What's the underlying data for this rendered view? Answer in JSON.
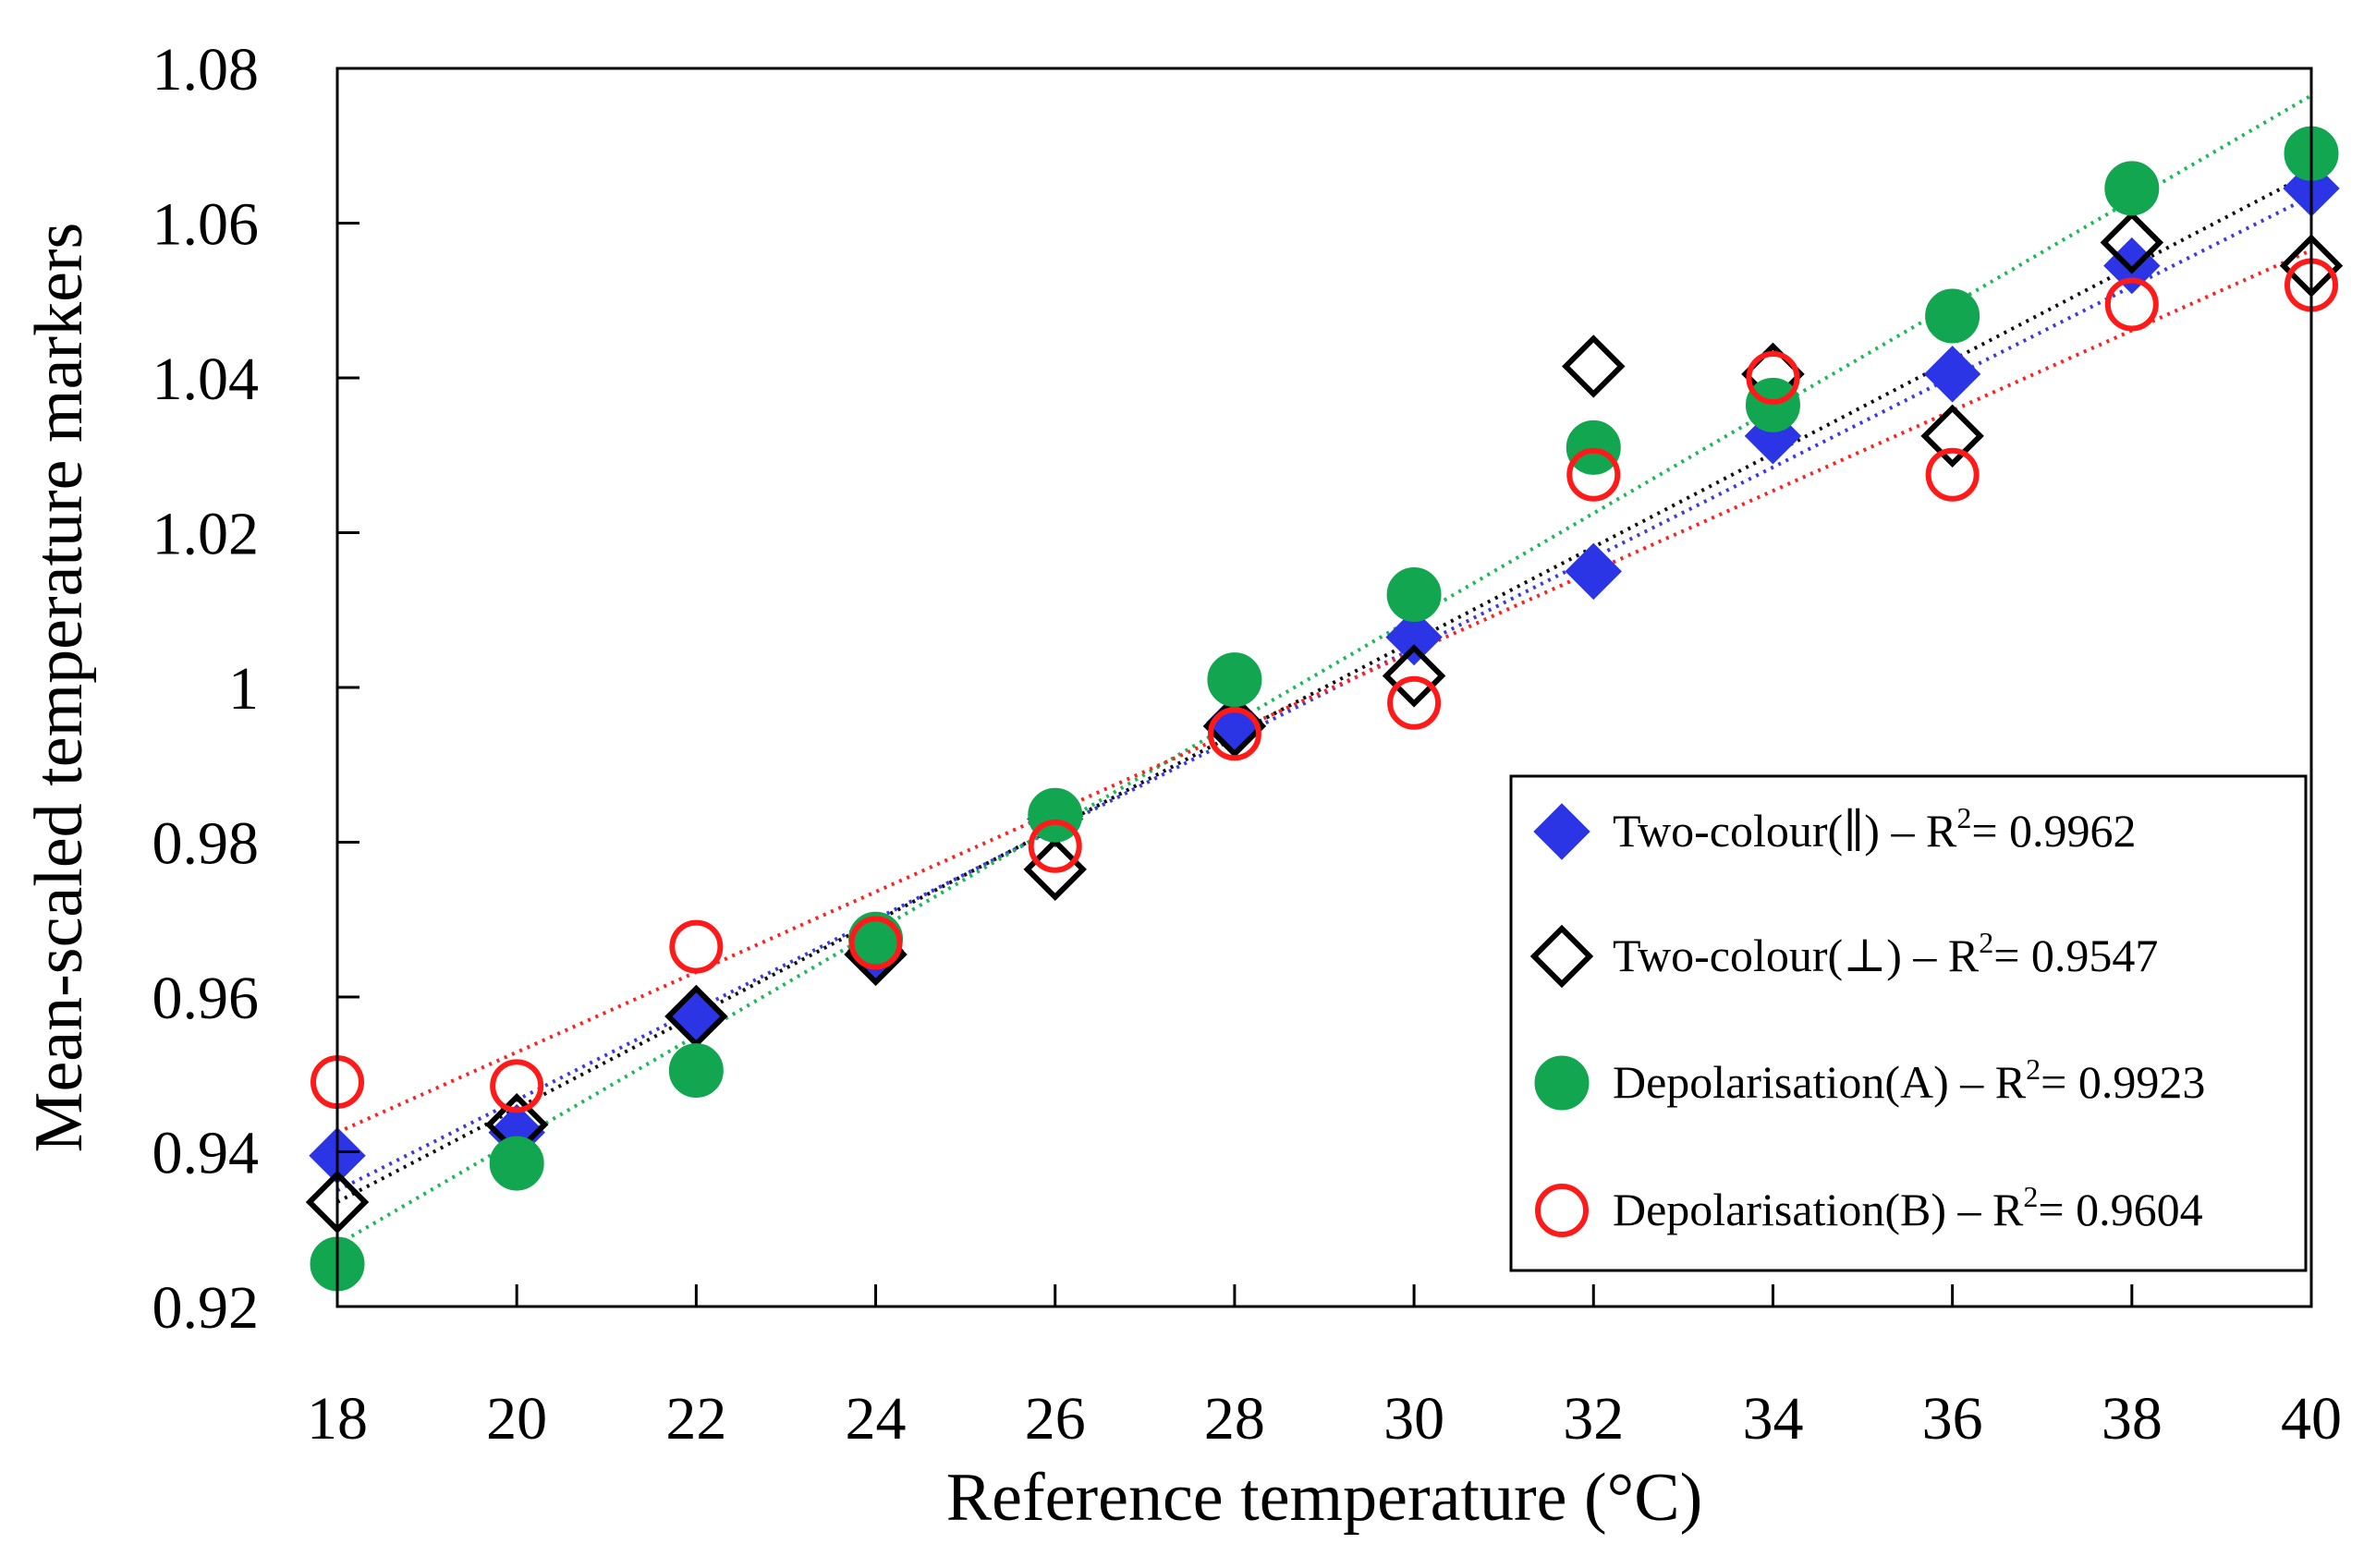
{
  "chart_data": {
    "type": "scatter",
    "title": "",
    "xlabel": "Reference temperature (°C)",
    "ylabel": "Mean-scaled temperature markers",
    "xlim": [
      18,
      40
    ],
    "ylim": [
      0.92,
      1.08
    ],
    "xticks": [
      18,
      20,
      22,
      24,
      26,
      28,
      30,
      32,
      34,
      36,
      38,
      40
    ],
    "yticks": [
      {
        "v": 0.92,
        "t": "0.92"
      },
      {
        "v": 0.94,
        "t": "0.94"
      },
      {
        "v": 0.96,
        "t": "0.96"
      },
      {
        "v": 0.98,
        "t": "0.98"
      },
      {
        "v": 1.0,
        "t": "1"
      },
      {
        "v": 1.02,
        "t": "1.02"
      },
      {
        "v": 1.04,
        "t": "1.04"
      },
      {
        "v": 1.06,
        "t": "1.06"
      },
      {
        "v": 1.08,
        "t": "1.08"
      }
    ],
    "grid": false,
    "legend_position": "bottom-right",
    "x": [
      18,
      20,
      22,
      24,
      26,
      28,
      30,
      32,
      34,
      36,
      38,
      40
    ],
    "series": [
      {
        "name": "Two-colour(∥)",
        "label": "Two-colour(∥)",
        "sep": " – R",
        "sup": "2",
        "r2": "= 0.9962",
        "marker": "diamond-filled",
        "color": "#2b35e6",
        "trend_color": "#3a3ae8",
        "values": [
          0.9395,
          0.9425,
          0.9575,
          0.966,
          0.983,
          0.9955,
          1.0065,
          1.015,
          1.0325,
          1.0405,
          1.0545,
          1.0645
        ],
        "trend": [
          0.935,
          1.0635
        ]
      },
      {
        "name": "Two-colour(⊥)",
        "label": "Two-colour(⊥)",
        "sep": " – R",
        "sup": "2",
        "r2": "= 0.9547",
        "marker": "diamond-open",
        "color": "#000000",
        "trend_color": "#111111",
        "values": [
          0.9335,
          0.9435,
          0.9575,
          0.9655,
          0.9765,
          0.995,
          1.0015,
          1.0415,
          1.0405,
          1.0325,
          1.0575,
          1.0545
        ],
        "trend": [
          0.9335,
          1.0665
        ]
      },
      {
        "name": "Depolarisation(A)",
        "label": "Depolarisation(A)",
        "sep": " – R",
        "sup": "2",
        "r2": "= 0.9923",
        "marker": "circle-filled",
        "color": "#13a651",
        "trend_color": "#1db85a",
        "values": [
          0.9255,
          0.9385,
          0.9505,
          0.9675,
          0.9835,
          1.001,
          1.012,
          1.031,
          1.0365,
          1.048,
          1.0645,
          1.069
        ],
        "trend": [
          0.928,
          1.0765
        ]
      },
      {
        "name": "Depolarisation(B)",
        "label": "Depolarisation(B)",
        "sep": " – R",
        "sup": "2",
        "r2": "= 0.9604",
        "marker": "circle-open",
        "color": "#ff1a1a",
        "trend_color": "#ff2020",
        "values": [
          0.949,
          0.9485,
          0.9665,
          0.967,
          0.9795,
          0.994,
          0.998,
          1.0275,
          1.04,
          1.0275,
          1.0495,
          1.052
        ],
        "trend": [
          0.9425,
          1.0565
        ]
      }
    ]
  }
}
